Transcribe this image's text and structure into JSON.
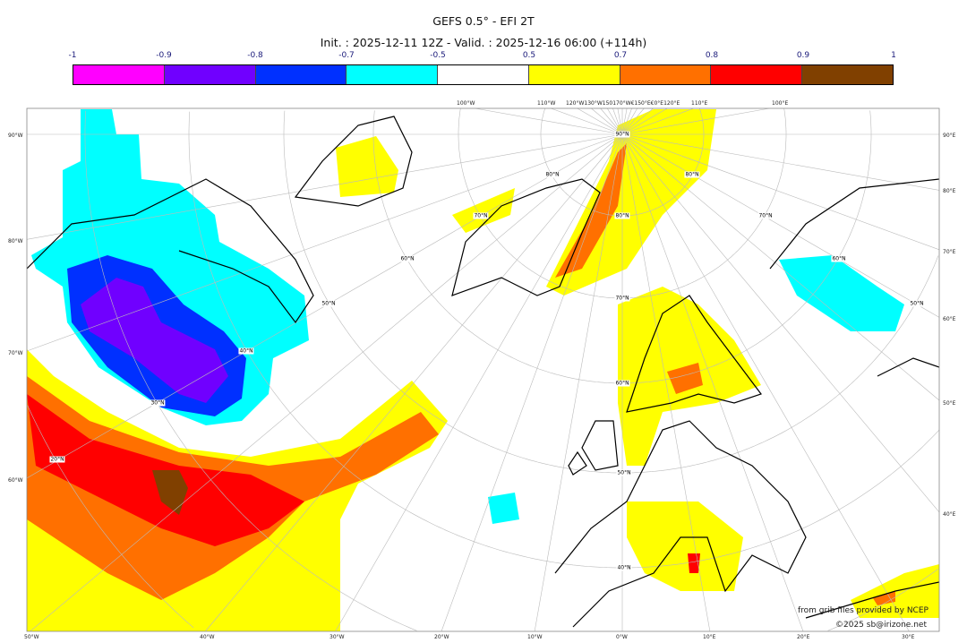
{
  "header": {
    "title": "GEFS 0.5° - EFI 2T",
    "subtitle": "Init. : 2025-12-11 12Z - Valid. : 2025-12-16 06:00 (+114h)"
  },
  "colorbar": {
    "ticks": [
      "-1",
      "-0.9",
      "-0.8",
      "-0.7",
      "-0.5",
      "0.5",
      "0.7",
      "0.8",
      "0.9",
      "1"
    ],
    "colors": [
      "#ff00ff",
      "#7000ff",
      "#0030ff",
      "#00ffff",
      "#ffffff",
      "#ffff00",
      "#ff7000",
      "#ff0000",
      "#804000"
    ]
  },
  "axes": {
    "left": [
      "90°W",
      "80°W",
      "70°W",
      "60°W"
    ],
    "right": [
      "90°E",
      "80°E",
      "70°E",
      "60°E",
      "50°E",
      "40°E"
    ],
    "bottom": [
      "50°W",
      "40°W",
      "30°W",
      "20°W",
      "10°W",
      "0°W",
      "10°E",
      "20°E",
      "30°E"
    ],
    "top": [
      "100°W",
      "110°W",
      "120°W130°W150170°W€150°E€0°E120°E",
      "110°E",
      "100°E"
    ]
  },
  "lat_labels": [
    "90°N",
    "80°N",
    "70°N",
    "60°N",
    "50°N",
    "40°N",
    "30°N",
    "20°N",
    "80°N",
    "70°N",
    "60°N",
    "50°N",
    "40°N",
    "80°N",
    "70°N",
    "60°N",
    "50°N"
  ],
  "credits": {
    "source": "from grib files provided by NCEP",
    "copyright": "©2025 sb@irizone.net"
  }
}
